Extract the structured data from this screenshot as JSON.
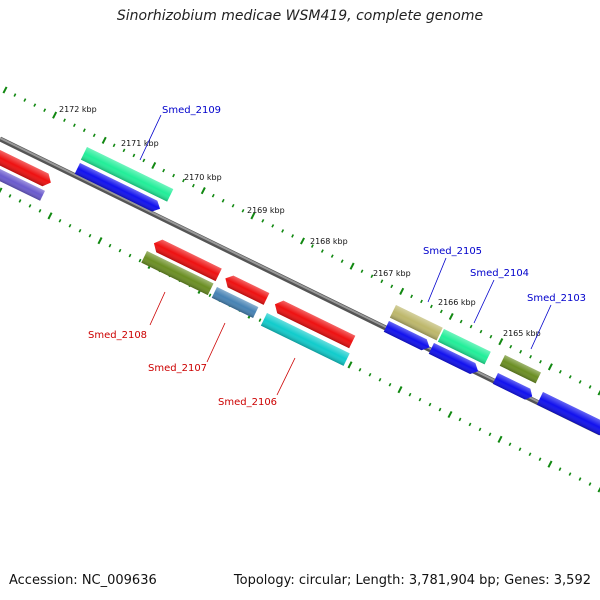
{
  "title": "Sinorhizobium medicae WSM419, complete genome",
  "footer": {
    "accession": "Accession: NC_009636",
    "stats": "Topology: circular; Length: 3,781,904 bp; Genes: 3,592"
  },
  "ticks": [
    {
      "label": "2172 kbp",
      "kbp": 2172
    },
    {
      "label": "2171 kbp",
      "kbp": 2171
    },
    {
      "label": "2170 kbp",
      "kbp": 2170
    },
    {
      "label": "2169 kbp",
      "kbp": 2169
    },
    {
      "label": "2168 kbp",
      "kbp": 2168
    },
    {
      "label": "2167 kbp",
      "kbp": 2167
    },
    {
      "label": "2166 kbp",
      "kbp": 2166
    },
    {
      "label": "2165 kbp",
      "kbp": 2165
    }
  ],
  "gene_labels": [
    {
      "name": "Smed_2109",
      "color": "#0000cc"
    },
    {
      "name": "Smed_2108",
      "color": "#cc0000"
    },
    {
      "name": "Smed_2107",
      "color": "#cc0000"
    },
    {
      "name": "Smed_2106",
      "color": "#cc0000"
    },
    {
      "name": "Smed_2105",
      "color": "#0000cc"
    },
    {
      "name": "Smed_2104",
      "color": "#0000cc"
    },
    {
      "name": "Smed_2103",
      "color": "#0000cc"
    }
  ],
  "colors": {
    "backbone": "#777777",
    "tick_marks": "#118811",
    "red_gene": "#ee1111",
    "blue_gene": "#1111ee",
    "teal_gene": "#22ee99",
    "cyan_gene": "#11cccc",
    "olive_gene": "#6b8e23",
    "khaki_gene": "#bdb76b",
    "steel_gene": "#4682b4",
    "slate_gene": "#6a5acd"
  }
}
